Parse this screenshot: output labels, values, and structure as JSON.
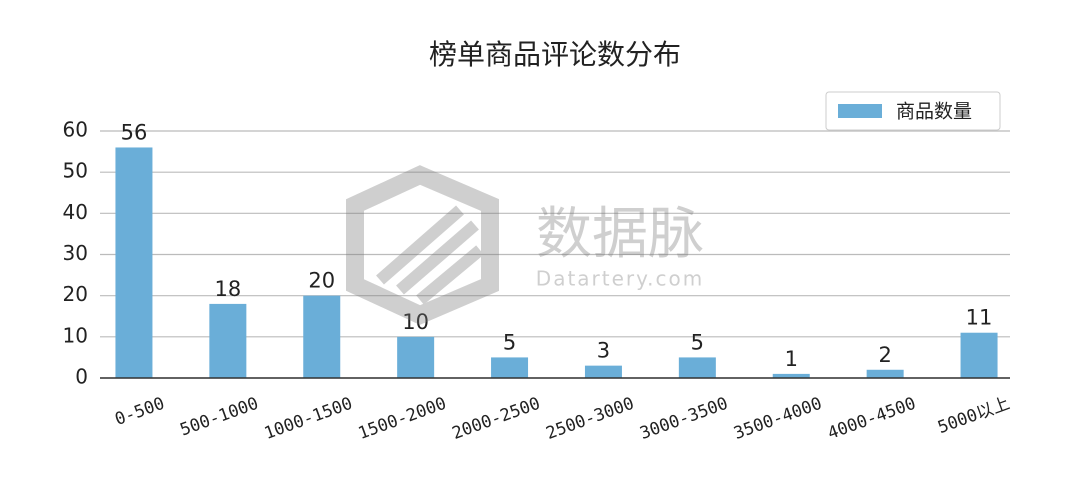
{
  "chart_data": {
    "type": "bar",
    "title": "榜单商品评论数分布",
    "categories": [
      "0-500",
      "500-1000",
      "1000-1500",
      "1500-2000",
      "2000-2500",
      "2500-3000",
      "3000-3500",
      "3500-4000",
      "4000-4500",
      "5000以上"
    ],
    "series": [
      {
        "name": "商品数量",
        "color": "#6aaed8",
        "values": [
          56,
          18,
          20,
          10,
          5,
          3,
          5,
          1,
          2,
          11
        ]
      }
    ],
    "ylim": [
      0,
      60
    ],
    "yticks": [
      0,
      10,
      20,
      30,
      40,
      50,
      60
    ],
    "grid": true,
    "legend": "upper right",
    "watermark": {
      "title": "数据脉",
      "subtitle": "Datartery.com"
    }
  }
}
